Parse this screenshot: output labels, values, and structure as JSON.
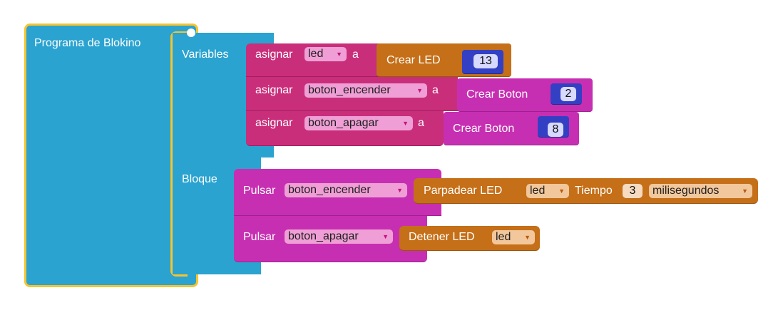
{
  "program": {
    "title": "Programa de Blokino",
    "section_variables": "Variables",
    "section_bloque": "Bloque"
  },
  "variables": [
    {
      "assign_label": "asignar",
      "var": "led",
      "to_label": "a",
      "creator": "Crear LED",
      "value": "13"
    },
    {
      "assign_label": "asignar",
      "var": "boton_encender",
      "to_label": "a",
      "creator": "Crear Boton",
      "value": "2"
    },
    {
      "assign_label": "asignar",
      "var": "boton_apagar",
      "to_label": "a",
      "creator": "Crear Boton",
      "value": "8"
    }
  ],
  "bloque": [
    {
      "pulsar_label": "Pulsar",
      "button_var": "boton_encender",
      "action_label": "Parpadear  LED",
      "led_var": "led",
      "tiempo_label": "Tiempo",
      "tiempo_value": "3",
      "unit": "milisegundos"
    },
    {
      "pulsar_label": "Pulsar",
      "button_var": "boton_apagar",
      "action_label": "Detener LED",
      "led_var": "led"
    }
  ],
  "dropdown_arrow": "▼",
  "colors": {
    "program_block": "#2aa3d0",
    "program_border": "#f6c42f",
    "assign_block": "#c92e7b",
    "crear_led_block": "#c56f18",
    "crear_boton_block": "#c72fb2",
    "number_block": "#3340c4",
    "pulsar_block": "#c72fb2",
    "action_block": "#c56f18"
  }
}
